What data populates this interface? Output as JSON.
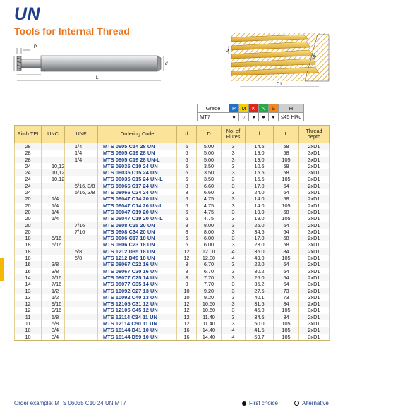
{
  "header": {
    "title": "UN",
    "subtitle": "Tools for Internal Thread"
  },
  "drawing_labels": {
    "p": "P",
    "d_small": "d",
    "D": "D",
    "l": "l",
    "L": "L",
    "P2": "P",
    "D1": "D1",
    "angle": "60°"
  },
  "grade": {
    "label": "Grade",
    "grade_name": "MT7",
    "iso_groups": [
      {
        "letter": "P",
        "color": "#1e73c8",
        "symbol": "●"
      },
      {
        "letter": "M",
        "color": "#f2d000",
        "symbol": "○"
      },
      {
        "letter": "K",
        "color": "#e0261b",
        "symbol": "●"
      },
      {
        "letter": "N",
        "color": "#2aa84a",
        "symbol": "●"
      },
      {
        "letter": "S",
        "color": "#f08a1e",
        "symbol": "●"
      },
      {
        "letter": "H",
        "color": "#cfcfcf",
        "symbol": "≤45 HRc"
      }
    ]
  },
  "table": {
    "headers": [
      "Pitch TPI",
      "UNC",
      "UNF",
      "Ordering Code",
      "d",
      "D",
      "No. of Flutes",
      "l",
      "L",
      "Thread depth"
    ],
    "rows": [
      [
        "28",
        "",
        "1/4",
        "MTS 0605  C14 28 UN",
        "6",
        "5.00",
        "3",
        "14.5",
        "58",
        "2xD1"
      ],
      [
        "28",
        "",
        "1/4",
        "MTS 0605  C19 28 UN",
        "6",
        "5.00",
        "3",
        "19.0",
        "58",
        "3xD1"
      ],
      [
        "28",
        "",
        "1/4",
        "MTS 0605  C19 28 UN-L",
        "6",
        "5.00",
        "3",
        "19.0",
        "105",
        "3xD1"
      ],
      [
        "24",
        "10,12",
        "",
        "MTS 06035 C10 24 UN",
        "6",
        "3.50",
        "3",
        "10.6",
        "58",
        "2xD1"
      ],
      [
        "24",
        "10,12",
        "",
        "MTS 06035 C15 24 UN",
        "6",
        "3.50",
        "3",
        "15.5",
        "58",
        "3xD1"
      ],
      [
        "24",
        "10,12",
        "",
        "MTS 06035 C15 24 UN-L",
        "6",
        "3.50",
        "3",
        "15.5",
        "105",
        "3xD1"
      ],
      [
        "24",
        "",
        "5/16, 3/8",
        "MTS 08066 C17 24 UN",
        "8",
        "6.60",
        "3",
        "17.0",
        "64",
        "2xD1"
      ],
      [
        "24",
        "",
        "5/16, 3/8",
        "MTS 08066 C24 24 UN",
        "8",
        "6.60",
        "3",
        "24.0",
        "64",
        "3xD1"
      ],
      [
        "20",
        "1/4",
        "",
        "MTS 06047 C14 20 UN",
        "6",
        "4.75",
        "3",
        "14.0",
        "58",
        "2xD1"
      ],
      [
        "20",
        "1/4",
        "",
        "MTS 06047 C14 20 UN-L",
        "6",
        "4.75",
        "3",
        "14.0",
        "105",
        "2xD1"
      ],
      [
        "20",
        "1/4",
        "",
        "MTS 06047 C19 20 UN",
        "6",
        "4.75",
        "3",
        "19.0",
        "58",
        "3xD1"
      ],
      [
        "20",
        "1/4",
        "",
        "MTS 06047 C19 20 UN-L",
        "6",
        "4.75",
        "3",
        "19.0",
        "105",
        "3xD1"
      ],
      [
        "20",
        "",
        "7/16",
        "MTS 0808  C25 20 UN",
        "8",
        "8.00",
        "3",
        "25.0",
        "64",
        "2xD1"
      ],
      [
        "20",
        "",
        "7/16",
        "MTS 0808  C34 20 UN",
        "8",
        "8.00",
        "3",
        "34.6",
        "64",
        "3xD1"
      ],
      [
        "18",
        "5/16",
        "",
        "MTS 0606  C17 18 UN",
        "6",
        "6.00",
        "3",
        "17.0",
        "58",
        "2xD1"
      ],
      [
        "18",
        "5/16",
        "",
        "MTS 0606  C23 18 UN",
        "6",
        "6.00",
        "3",
        "23.0",
        "58",
        "3xD1"
      ],
      [
        "18",
        "",
        "5/8",
        "MTS 1212  D35 18 UN",
        "12",
        "12.00",
        "4",
        "35.0",
        "84",
        "2xD1"
      ],
      [
        "18",
        "",
        "5/8",
        "MTS 1212  D49 18 UN",
        "12",
        "12.00",
        "4",
        "49.0",
        "105",
        "3xD1"
      ],
      [
        "16",
        "3/8",
        "",
        "MTS 08067 C22 16 UN",
        "8",
        "6.70",
        "3",
        "22.0",
        "64",
        "2xD1"
      ],
      [
        "16",
        "3/8",
        "",
        "MTS 08067 C30 16 UN",
        "8",
        "6.70",
        "3",
        "30.2",
        "64",
        "3xD1"
      ],
      [
        "14",
        "7/16",
        "",
        "MTS 08077 C25 14 UN",
        "8",
        "7.70",
        "3",
        "25.0",
        "64",
        "2xD1"
      ],
      [
        "14",
        "7/16",
        "",
        "MTS 08077 C35 14 UN",
        "8",
        "7.70",
        "3",
        "35.2",
        "64",
        "3xD1"
      ],
      [
        "13",
        "1/2",
        "",
        "MTS 10092 C27 13 UN",
        "10",
        "9.20",
        "3",
        "27.5",
        "73",
        "2xD1"
      ],
      [
        "13",
        "1/2",
        "",
        "MTS 10092 C40 13 UN",
        "10",
        "9.20",
        "3",
        "40.1",
        "73",
        "3xD1"
      ],
      [
        "12",
        "9/16",
        "",
        "MTS 12105 C31 12 UN",
        "12",
        "10.50",
        "3",
        "31.5",
        "84",
        "2xD1"
      ],
      [
        "12",
        "9/16",
        "",
        "MTS 12105 C45 12 UN",
        "12",
        "10.50",
        "3",
        "45.0",
        "105",
        "3xD1"
      ],
      [
        "11",
        "5/8",
        "",
        "MTS 12114 C34 11 UN",
        "12",
        "11.40",
        "3",
        "34.5",
        "84",
        "2xD1"
      ],
      [
        "11",
        "5/8",
        "",
        "MTS 12114 C50 11 UN",
        "12",
        "11.40",
        "3",
        "50.0",
        "105",
        "3xD1"
      ],
      [
        "10",
        "3/4",
        "",
        "MTS 16144 D41 10 UN",
        "16",
        "14.40",
        "4",
        "41.5",
        "105",
        "2xD1"
      ],
      [
        "10",
        "3/4",
        "",
        "MTS 16144 D59 10 UN",
        "16",
        "14.40",
        "4",
        "59.7",
        "105",
        "3xD1"
      ]
    ]
  },
  "footer": {
    "order_example": "Order example: MTS 06035 C10 24 UN MT7",
    "first_choice": "First choice",
    "alternative": "Alternative"
  }
}
